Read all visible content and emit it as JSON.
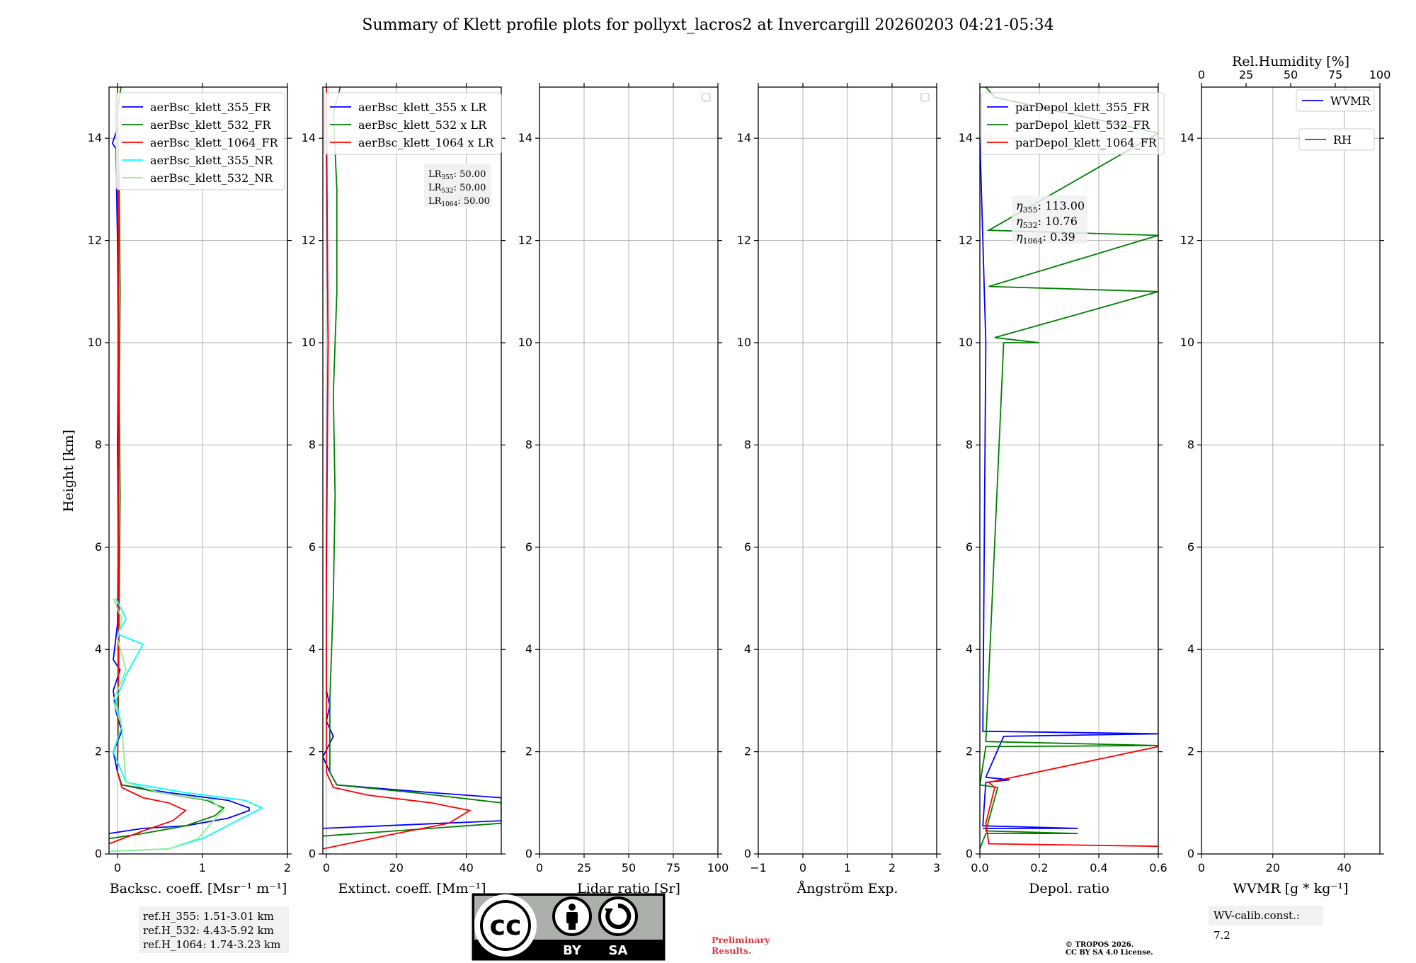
{
  "title": "Summary of Klett profile plots for pollyxt_lacros2 at Invercargill 20260203 04:21-05:34",
  "colors": {
    "c355": "#0000ff",
    "c532": "#008000",
    "c1064": "#ff0000",
    "c355nr": "#00ffff",
    "c532nr": "#90ee90",
    "grid": "#b0b0b0"
  },
  "chart_data": [
    {
      "type": "line",
      "id": "bsc",
      "xlabel": "Backsc. coeff. [Msr⁻¹ m⁻¹]",
      "ylabel": "Height [km]",
      "xlim": [
        -0.1,
        2.0
      ],
      "ylim": [
        0,
        15
      ],
      "xticks": [
        0,
        1,
        2
      ],
      "yticks": [
        0,
        2,
        4,
        6,
        8,
        10,
        12,
        14
      ],
      "legend": [
        "aerBsc_klett_355_FR",
        "aerBsc_klett_532_FR",
        "aerBsc_klett_1064_FR",
        "aerBsc_klett_355_NR",
        "aerBsc_klett_532_NR"
      ],
      "series": [
        {
          "name": "aerBsc_klett_355_FR",
          "color": "c355",
          "values": [
            [
              -0.1,
              0.4
            ],
            [
              0.3,
              0.5
            ],
            [
              0.8,
              0.55
            ],
            [
              1.3,
              0.7
            ],
            [
              1.55,
              0.85
            ],
            [
              1.55,
              0.9
            ],
            [
              1.3,
              1.05
            ],
            [
              0.6,
              1.2
            ],
            [
              0.05,
              1.35
            ],
            [
              0.0,
              1.6
            ],
            [
              -0.05,
              2.0
            ],
            [
              0.05,
              2.4
            ],
            [
              -0.02,
              2.8
            ],
            [
              -0.05,
              3.2
            ],
            [
              0.03,
              3.6
            ],
            [
              -0.05,
              3.8
            ],
            [
              0.0,
              4.5
            ],
            [
              0.01,
              6
            ],
            [
              0.0,
              8
            ],
            [
              0.01,
              10
            ],
            [
              0.0,
              12
            ],
            [
              -0.02,
              13.8
            ],
            [
              -0.06,
              13.9
            ],
            [
              0.0,
              14.2
            ]
          ]
        },
        {
          "name": "aerBsc_klett_532_FR",
          "color": "c532",
          "values": [
            [
              -0.1,
              0.3
            ],
            [
              0.3,
              0.4
            ],
            [
              0.8,
              0.55
            ],
            [
              1.15,
              0.75
            ],
            [
              1.25,
              0.9
            ],
            [
              1.05,
              1.05
            ],
            [
              0.5,
              1.2
            ],
            [
              0.05,
              1.35
            ],
            [
              0.0,
              1.6
            ],
            [
              0.01,
              3
            ],
            [
              0.02,
              5
            ],
            [
              0.03,
              7
            ],
            [
              0.02,
              9
            ],
            [
              0.03,
              11
            ],
            [
              0.02,
              13
            ],
            [
              0.0,
              14.5
            ],
            [
              0.04,
              15
            ]
          ]
        },
        {
          "name": "aerBsc_klett_1064_FR",
          "color": "c1064",
          "values": [
            [
              -0.1,
              0.2
            ],
            [
              0.3,
              0.45
            ],
            [
              0.65,
              0.65
            ],
            [
              0.8,
              0.85
            ],
            [
              0.6,
              1.0
            ],
            [
              0.3,
              1.1
            ],
            [
              0.05,
              1.3
            ],
            [
              0.0,
              1.6
            ],
            [
              0.01,
              4
            ],
            [
              0.01,
              8
            ],
            [
              0.01,
              12
            ],
            [
              0.0,
              15
            ]
          ]
        },
        {
          "name": "aerBsc_klett_355_NR",
          "color": "c355nr",
          "values": [
            [
              -0.1,
              0.05
            ],
            [
              0.6,
              0.1
            ],
            [
              1.0,
              0.3
            ],
            [
              1.35,
              0.6
            ],
            [
              1.7,
              0.9
            ],
            [
              1.5,
              1.05
            ],
            [
              0.8,
              1.2
            ],
            [
              0.1,
              1.4
            ],
            [
              -0.05,
              2.0
            ],
            [
              0.05,
              2.5
            ],
            [
              -0.02,
              3.0
            ],
            [
              0.1,
              3.5
            ],
            [
              0.3,
              4.1
            ],
            [
              0.0,
              4.3
            ],
            [
              0.1,
              4.6
            ],
            [
              -0.02,
              5.0
            ]
          ]
        },
        {
          "name": "aerBsc_klett_532_NR",
          "color": "c532nr",
          "values": [
            [
              -0.1,
              0.05
            ],
            [
              0.6,
              0.1
            ],
            [
              0.95,
              0.3
            ],
            [
              1.1,
              0.6
            ],
            [
              1.25,
              0.85
            ],
            [
              1.1,
              1.05
            ],
            [
              0.5,
              1.2
            ],
            [
              0.1,
              1.4
            ],
            [
              0.05,
              2.5
            ],
            [
              -0.05,
              3.0
            ],
            [
              0.1,
              3.6
            ],
            [
              0.0,
              4.2
            ],
            [
              0.05,
              4.6
            ],
            [
              -0.05,
              5.0
            ]
          ]
        }
      ]
    },
    {
      "type": "line",
      "id": "ext",
      "xlabel": "Extinct. coeff. [Mm⁻¹]",
      "xlim": [
        -1,
        50
      ],
      "ylim": [
        0,
        15
      ],
      "xticks": [
        0,
        20,
        40
      ],
      "yticks": [
        0,
        2,
        4,
        6,
        8,
        10,
        12,
        14
      ],
      "legend": [
        "aerBsc_klett_355 x LR",
        "aerBsc_klett_532 x LR",
        "aerBsc_klett_1064 x LR"
      ],
      "series": [
        {
          "name": "aerBsc_klett_355 x LR",
          "color": "c355",
          "values": [
            [
              -1,
              0.5
            ],
            [
              50,
              0.65
            ],
            [
              50,
              1.1
            ],
            [
              30,
              1.2
            ],
            [
              3,
              1.35
            ],
            [
              1,
              1.6
            ],
            [
              -1,
              1.9
            ],
            [
              2,
              2.3
            ],
            [
              0,
              2.6
            ],
            [
              1,
              2.9
            ],
            [
              0,
              3.2
            ],
            [
              0,
              6
            ],
            [
              0.5,
              10
            ],
            [
              0,
              14
            ]
          ]
        },
        {
          "name": "aerBsc_klett_532 x LR",
          "color": "c532",
          "values": [
            [
              -1,
              0.35
            ],
            [
              50,
              0.6
            ],
            [
              50,
              1.0
            ],
            [
              25,
              1.2
            ],
            [
              3,
              1.35
            ],
            [
              1,
              1.6
            ],
            [
              1,
              3
            ],
            [
              2,
              5
            ],
            [
              2.5,
              7
            ],
            [
              2,
              9
            ],
            [
              3,
              11
            ],
            [
              3,
              13
            ],
            [
              2,
              14.5
            ],
            [
              4,
              15
            ]
          ]
        },
        {
          "name": "aerBsc_klett_1064 x LR",
          "color": "c1064",
          "values": [
            [
              -1,
              0.1
            ],
            [
              20,
              0.4
            ],
            [
              35,
              0.6
            ],
            [
              41,
              0.85
            ],
            [
              30,
              1.0
            ],
            [
              12,
              1.15
            ],
            [
              2,
              1.3
            ],
            [
              0,
              1.6
            ],
            [
              0,
              5
            ],
            [
              0.5,
              10
            ],
            [
              0,
              15
            ]
          ]
        }
      ]
    },
    {
      "type": "line",
      "id": "lr",
      "xlabel": "Lidar ratio [Sr]",
      "xlim": [
        0,
        100
      ],
      "ylim": [
        0,
        15
      ],
      "xticks": [
        0,
        25,
        50,
        75,
        100
      ],
      "yticks": [
        0,
        2,
        4,
        6,
        8,
        10,
        12,
        14
      ],
      "series": []
    },
    {
      "type": "line",
      "id": "ang",
      "xlabel": "Ångström Exp.",
      "xlim": [
        -1,
        3
      ],
      "ylim": [
        0,
        15
      ],
      "xticks": [
        -1,
        0,
        1,
        2,
        3
      ],
      "yticks": [
        0,
        2,
        4,
        6,
        8,
        10,
        12,
        14
      ],
      "series": []
    },
    {
      "type": "line",
      "id": "dep",
      "xlabel": "Depol. ratio",
      "xlim": [
        0,
        0.6
      ],
      "ylim": [
        0,
        15
      ],
      "xticks": [
        0.0,
        0.2,
        0.4,
        0.6
      ],
      "yticks": [
        0,
        2,
        4,
        6,
        8,
        10,
        12,
        14
      ],
      "legend": [
        "parDepol_klett_355_FR",
        "parDepol_klett_532_FR",
        "parDepol_klett_1064_FR"
      ],
      "series": [
        {
          "name": "parDepol_klett_355_FR",
          "color": "c355",
          "values": [
            [
              0.01,
              0.5
            ],
            [
              0.33,
              0.5
            ],
            [
              0.01,
              0.55
            ],
            [
              0.02,
              1.4
            ],
            [
              0.1,
              1.45
            ],
            [
              0.02,
              1.5
            ],
            [
              0.08,
              2.3
            ],
            [
              0.6,
              2.35
            ],
            [
              0.01,
              2.4
            ],
            [
              0.02,
              10
            ],
            [
              0.0,
              14
            ]
          ]
        },
        {
          "name": "parDepol_klett_532_FR",
          "color": "c532",
          "values": [
            [
              0.0,
              0.1
            ],
            [
              0.02,
              0.4
            ],
            [
              0.33,
              0.4
            ],
            [
              0.02,
              0.45
            ],
            [
              0.06,
              1.3
            ],
            [
              0.0,
              1.35
            ],
            [
              0.02,
              2.1
            ],
            [
              0.6,
              2.12
            ],
            [
              0.02,
              2.2
            ],
            [
              0.08,
              10
            ],
            [
              0.2,
              10.0
            ],
            [
              0.05,
              10.1
            ],
            [
              0.6,
              11.0
            ],
            [
              0.03,
              11.1
            ],
            [
              0.6,
              12.1
            ],
            [
              0.03,
              12.2
            ],
            [
              0.6,
              14.1
            ],
            [
              0.05,
              14.8
            ],
            [
              0.02,
              15
            ]
          ]
        },
        {
          "name": "parDepol_klett_1064_FR",
          "color": "c1064",
          "values": [
            [
              0.6,
              0.15
            ],
            [
              0.03,
              0.2
            ],
            [
              0.02,
              0.6
            ],
            [
              0.05,
              1.3
            ],
            [
              0.03,
              1.4
            ],
            [
              0.6,
              2.1
            ],
            [
              0.6,
              15
            ]
          ]
        }
      ]
    },
    {
      "type": "line",
      "id": "wv",
      "xlabel": "WVMR [g * kg⁻¹]",
      "x2label": "Rel.Humidity [%]",
      "xlim": [
        0,
        50
      ],
      "x2lim": [
        0,
        100
      ],
      "ylim": [
        0,
        15
      ],
      "xticks": [
        0,
        20,
        40
      ],
      "x2ticks": [
        0,
        25,
        50,
        75,
        100
      ],
      "yticks": [
        0,
        2,
        4,
        6,
        8,
        10,
        12,
        14
      ],
      "legend": [
        "WVMR",
        "RH"
      ],
      "series": []
    }
  ],
  "annotations": {
    "lr": [
      "LR355: 50.00",
      "LR532: 50.00",
      "LR1064: 50.00"
    ],
    "eta": [
      "η355: 113.00",
      "η532: 10.76",
      "η1064: 0.39"
    ],
    "ref": [
      "ref.H_355: 1.51-3.01 km",
      "ref.H_532: 4.43-5.92 km",
      "ref.H_1064: 1.74-3.23 km"
    ],
    "wv_calib": "WV-calib.const.: 7.2",
    "preliminary": [
      "Preliminary",
      "Results."
    ],
    "copyright": [
      "© TROPOS 2026.",
      "CC BY SA 4.0 License."
    ],
    "cc_by": "BY",
    "cc_sa": "SA",
    "cc_logo": "cc"
  }
}
